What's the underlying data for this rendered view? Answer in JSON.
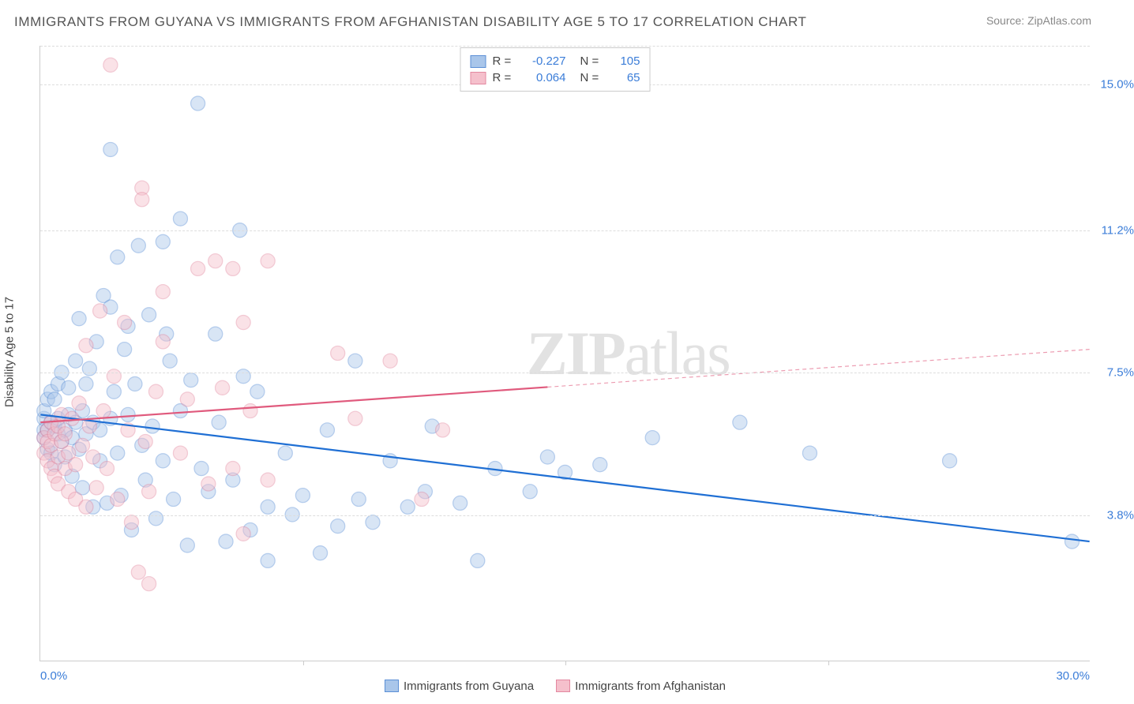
{
  "title": "IMMIGRANTS FROM GUYANA VS IMMIGRANTS FROM AFGHANISTAN DISABILITY AGE 5 TO 17 CORRELATION CHART",
  "source": "Source: ZipAtlas.com",
  "watermark": {
    "bold": "ZIP",
    "light": "atlas"
  },
  "ylabel": "Disability Age 5 to 17",
  "chart": {
    "type": "scatter",
    "xlim": [
      0,
      30
    ],
    "ylim": [
      0,
      16
    ],
    "xticks": [
      {
        "v": 0,
        "label": "0.0%",
        "align": "left"
      },
      {
        "v": 30,
        "label": "30.0%",
        "align": "right"
      }
    ],
    "vticks": [
      7.5,
      15,
      22.5
    ],
    "yticks": [
      {
        "v": 3.8,
        "label": "3.8%"
      },
      {
        "v": 7.5,
        "label": "7.5%"
      },
      {
        "v": 11.2,
        "label": "11.2%"
      },
      {
        "v": 15.0,
        "label": "15.0%"
      }
    ],
    "background_color": "#ffffff",
    "grid_color": "#dddddd",
    "marker_radius": 9,
    "marker_opacity": 0.45,
    "line_width": 2.2,
    "series": [
      {
        "name": "Immigrants from Guyana",
        "fill": "#a9c6ea",
        "stroke": "#5b8fd6",
        "line_color": "#1f6fd4",
        "r_value": "-0.227",
        "n_value": "105",
        "trend": {
          "x1": 0,
          "y1": 6.4,
          "x2": 30,
          "y2": 3.1,
          "solid_until": 30
        },
        "points": [
          [
            0.1,
            6.3
          ],
          [
            0.1,
            6.0
          ],
          [
            0.1,
            5.8
          ],
          [
            0.1,
            6.5
          ],
          [
            0.2,
            6.0
          ],
          [
            0.2,
            5.5
          ],
          [
            0.2,
            6.8
          ],
          [
            0.3,
            6.2
          ],
          [
            0.3,
            7.0
          ],
          [
            0.3,
            5.4
          ],
          [
            0.4,
            6.1
          ],
          [
            0.4,
            5.1
          ],
          [
            0.4,
            6.8
          ],
          [
            0.5,
            5.9
          ],
          [
            0.5,
            7.2
          ],
          [
            0.5,
            6.3
          ],
          [
            0.6,
            5.7
          ],
          [
            0.6,
            7.5
          ],
          [
            0.7,
            6.0
          ],
          [
            0.7,
            5.3
          ],
          [
            0.8,
            6.4
          ],
          [
            0.8,
            7.1
          ],
          [
            0.9,
            5.8
          ],
          [
            0.9,
            4.8
          ],
          [
            1.0,
            6.2
          ],
          [
            1.0,
            7.8
          ],
          [
            1.1,
            5.5
          ],
          [
            1.1,
            8.9
          ],
          [
            1.2,
            6.5
          ],
          [
            1.2,
            4.5
          ],
          [
            1.3,
            7.2
          ],
          [
            1.3,
            5.9
          ],
          [
            1.4,
            7.6
          ],
          [
            1.5,
            6.2
          ],
          [
            1.5,
            4.0
          ],
          [
            1.6,
            8.3
          ],
          [
            1.7,
            6.0
          ],
          [
            1.7,
            5.2
          ],
          [
            1.8,
            9.5
          ],
          [
            1.9,
            4.1
          ],
          [
            2.0,
            6.3
          ],
          [
            2.0,
            9.2
          ],
          [
            2.1,
            7.0
          ],
          [
            2.2,
            10.5
          ],
          [
            2.2,
            5.4
          ],
          [
            2.3,
            4.3
          ],
          [
            2.4,
            8.1
          ],
          [
            2.5,
            6.4
          ],
          [
            2.6,
            3.4
          ],
          [
            2.7,
            7.2
          ],
          [
            2.8,
            10.8
          ],
          [
            2.9,
            5.6
          ],
          [
            3.0,
            4.7
          ],
          [
            3.1,
            9.0
          ],
          [
            3.2,
            6.1
          ],
          [
            3.3,
            3.7
          ],
          [
            3.5,
            10.9
          ],
          [
            3.5,
            5.2
          ],
          [
            3.7,
            7.8
          ],
          [
            3.8,
            4.2
          ],
          [
            4.0,
            11.5
          ],
          [
            4.0,
            6.5
          ],
          [
            4.2,
            3.0
          ],
          [
            4.3,
            7.3
          ],
          [
            4.5,
            14.5
          ],
          [
            4.6,
            5.0
          ],
          [
            4.8,
            4.4
          ],
          [
            5.0,
            8.5
          ],
          [
            5.1,
            6.2
          ],
          [
            5.3,
            3.1
          ],
          [
            5.5,
            4.7
          ],
          [
            5.7,
            11.2
          ],
          [
            6.0,
            3.4
          ],
          [
            6.2,
            7.0
          ],
          [
            6.5,
            4.0
          ],
          [
            6.5,
            2.6
          ],
          [
            7.0,
            5.4
          ],
          [
            7.2,
            3.8
          ],
          [
            7.5,
            4.3
          ],
          [
            8.0,
            2.8
          ],
          [
            8.2,
            6.0
          ],
          [
            8.5,
            3.5
          ],
          [
            9.0,
            7.8
          ],
          [
            9.1,
            4.2
          ],
          [
            9.5,
            3.6
          ],
          [
            10.0,
            5.2
          ],
          [
            10.5,
            4.0
          ],
          [
            11.0,
            4.4
          ],
          [
            11.2,
            6.1
          ],
          [
            12.0,
            4.1
          ],
          [
            12.5,
            2.6
          ],
          [
            13.0,
            5.0
          ],
          [
            14.0,
            4.4
          ],
          [
            14.5,
            5.3
          ],
          [
            15.0,
            4.9
          ],
          [
            16.0,
            5.1
          ],
          [
            17.5,
            5.8
          ],
          [
            20.0,
            6.2
          ],
          [
            22.0,
            5.4
          ],
          [
            26.0,
            5.2
          ],
          [
            29.5,
            3.1
          ],
          [
            2.0,
            13.3
          ],
          [
            2.5,
            8.7
          ],
          [
            3.6,
            8.5
          ],
          [
            5.8,
            7.4
          ]
        ]
      },
      {
        "name": "Immigrants from Afghanistan",
        "fill": "#f5c0cc",
        "stroke": "#e388a0",
        "line_color": "#e05a7d",
        "r_value": "0.064",
        "n_value": "65",
        "trend": {
          "x1": 0,
          "y1": 6.2,
          "x2": 30,
          "y2": 8.1,
          "solid_until": 14.5
        },
        "points": [
          [
            0.1,
            5.8
          ],
          [
            0.1,
            5.4
          ],
          [
            0.2,
            6.0
          ],
          [
            0.2,
            5.2
          ],
          [
            0.2,
            5.7
          ],
          [
            0.3,
            6.2
          ],
          [
            0.3,
            5.0
          ],
          [
            0.3,
            5.6
          ],
          [
            0.4,
            5.9
          ],
          [
            0.4,
            4.8
          ],
          [
            0.5,
            6.1
          ],
          [
            0.5,
            5.3
          ],
          [
            0.5,
            4.6
          ],
          [
            0.6,
            5.7
          ],
          [
            0.6,
            6.4
          ],
          [
            0.7,
            5.0
          ],
          [
            0.7,
            5.9
          ],
          [
            0.8,
            5.4
          ],
          [
            0.8,
            4.4
          ],
          [
            0.9,
            6.3
          ],
          [
            1.0,
            5.1
          ],
          [
            1.0,
            4.2
          ],
          [
            1.1,
            6.7
          ],
          [
            1.2,
            5.6
          ],
          [
            1.3,
            4.0
          ],
          [
            1.3,
            8.2
          ],
          [
            1.4,
            6.1
          ],
          [
            1.5,
            5.3
          ],
          [
            1.6,
            4.5
          ],
          [
            1.7,
            9.1
          ],
          [
            1.8,
            6.5
          ],
          [
            1.9,
            5.0
          ],
          [
            2.0,
            15.5
          ],
          [
            2.1,
            7.4
          ],
          [
            2.2,
            4.2
          ],
          [
            2.4,
            8.8
          ],
          [
            2.5,
            6.0
          ],
          [
            2.6,
            3.6
          ],
          [
            2.8,
            2.3
          ],
          [
            2.9,
            12.3
          ],
          [
            2.9,
            12.0
          ],
          [
            3.0,
            5.7
          ],
          [
            3.1,
            4.4
          ],
          [
            3.3,
            7.0
          ],
          [
            3.5,
            9.6
          ],
          [
            3.5,
            8.3
          ],
          [
            4.0,
            5.4
          ],
          [
            4.2,
            6.8
          ],
          [
            4.5,
            10.2
          ],
          [
            4.8,
            4.6
          ],
          [
            5.0,
            10.4
          ],
          [
            5.2,
            7.1
          ],
          [
            5.5,
            5.0
          ],
          [
            5.5,
            10.2
          ],
          [
            5.8,
            3.3
          ],
          [
            5.8,
            8.8
          ],
          [
            6.0,
            6.5
          ],
          [
            6.5,
            10.4
          ],
          [
            6.5,
            4.7
          ],
          [
            8.5,
            8.0
          ],
          [
            9.0,
            6.3
          ],
          [
            10.0,
            7.8
          ],
          [
            10.9,
            4.2
          ],
          [
            11.5,
            6.0
          ],
          [
            3.1,
            2.0
          ]
        ]
      }
    ]
  },
  "legend_labels": {
    "r": "R =",
    "n": "N ="
  }
}
